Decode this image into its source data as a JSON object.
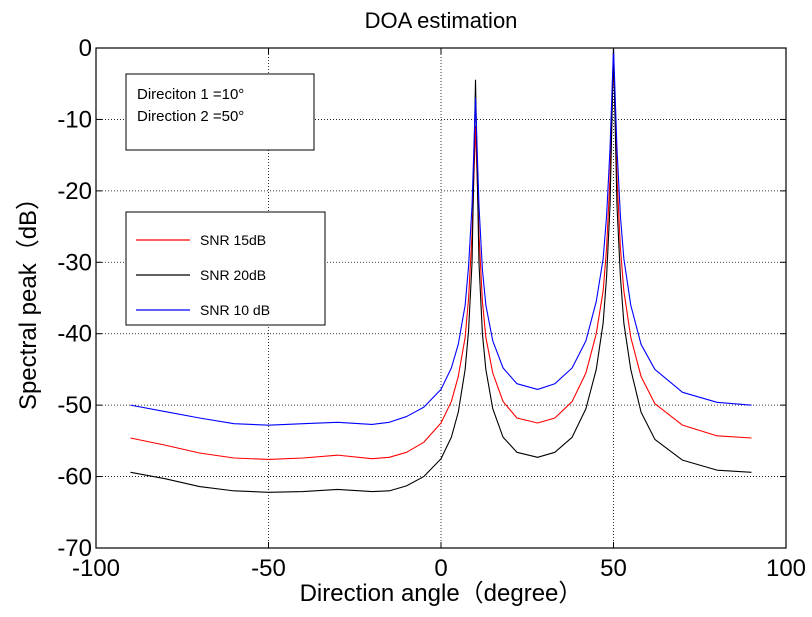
{
  "chart_data": {
    "type": "line",
    "title": "DOA estimation",
    "xlabel": "Direction angle（degree）",
    "ylabel": "Spectral peak（dB）",
    "xlim": [
      -100,
      100
    ],
    "ylim": [
      -70,
      0
    ],
    "xticks": [
      -100,
      -50,
      0,
      50,
      100
    ],
    "yticks": [
      0,
      -10,
      -20,
      -30,
      -40,
      -50,
      -60,
      -70
    ],
    "xtick_labels": [
      "-100",
      "-50",
      "0",
      "50",
      "100"
    ],
    "ytick_labels": [
      "0",
      "-10",
      "-20",
      "-30",
      "-40",
      "-50",
      "-60",
      "-70"
    ],
    "grid": true,
    "grid_style": "dotted",
    "annotations": [
      "Direciton 1 =10°",
      "Direction 2 =50°"
    ],
    "legend_position": "middle-left",
    "series": [
      {
        "name": "SNR 15dB",
        "color": "#ff0000",
        "x": [
          -90,
          -80,
          -70,
          -60,
          -50,
          -40,
          -30,
          -20,
          -15,
          -10,
          -5,
          0,
          3,
          5,
          7,
          8,
          9,
          10,
          11,
          12,
          13,
          15,
          18,
          22,
          28,
          33,
          38,
          42,
          45,
          47,
          48,
          49,
          50,
          51,
          52,
          53,
          55,
          58,
          62,
          70,
          80,
          90
        ],
        "y": [
          -54.6,
          -55.6,
          -56.7,
          -57.4,
          -57.6,
          -57.4,
          -57.0,
          -57.5,
          -57.3,
          -56.6,
          -55.2,
          -52.5,
          -49.5,
          -46.0,
          -40.5,
          -35.0,
          -26.0,
          -11.0,
          -26.0,
          -35.5,
          -40.5,
          -45.5,
          -49.5,
          -51.8,
          -52.5,
          -51.8,
          -49.5,
          -45.5,
          -40.0,
          -34.0,
          -28.0,
          -18.0,
          -1.0,
          -18.0,
          -28.0,
          -34.0,
          -40.5,
          -46.0,
          -49.8,
          -52.8,
          -54.3,
          -54.6
        ]
      },
      {
        "name": "SNR 20dB",
        "color": "#000000",
        "x": [
          -90,
          -80,
          -70,
          -60,
          -50,
          -40,
          -30,
          -20,
          -15,
          -10,
          -5,
          0,
          3,
          5,
          7,
          8,
          9,
          10,
          11,
          12,
          13,
          15,
          18,
          22,
          28,
          33,
          38,
          42,
          45,
          47,
          48,
          49,
          50,
          51,
          52,
          53,
          55,
          58,
          62,
          70,
          80,
          90
        ],
        "y": [
          -59.4,
          -60.3,
          -61.4,
          -62.0,
          -62.2,
          -62.1,
          -61.8,
          -62.1,
          -62.0,
          -61.3,
          -60.0,
          -57.5,
          -54.5,
          -51.0,
          -45.0,
          -39.5,
          -30.0,
          -4.5,
          -30.0,
          -40.0,
          -45.0,
          -50.5,
          -54.5,
          -56.6,
          -57.3,
          -56.6,
          -54.5,
          -50.5,
          -45.0,
          -38.5,
          -32.0,
          -22.0,
          -0.2,
          -22.0,
          -32.0,
          -38.5,
          -45.0,
          -51.0,
          -54.8,
          -57.7,
          -59.1,
          -59.4
        ]
      },
      {
        "name": "SNR 10 dB",
        "color": "#0000ff",
        "x": [
          -90,
          -80,
          -70,
          -60,
          -50,
          -40,
          -30,
          -20,
          -15,
          -10,
          -5,
          0,
          3,
          5,
          7,
          8,
          9,
          10,
          11,
          12,
          13,
          15,
          18,
          22,
          28,
          33,
          38,
          42,
          45,
          47,
          48,
          49,
          50,
          51,
          52,
          53,
          55,
          58,
          62,
          70,
          80,
          90
        ],
        "y": [
          -50.0,
          -50.9,
          -51.8,
          -52.6,
          -52.8,
          -52.6,
          -52.4,
          -52.7,
          -52.4,
          -51.6,
          -50.3,
          -47.8,
          -44.8,
          -41.5,
          -36.0,
          -30.5,
          -22.0,
          -7.0,
          -22.0,
          -31.0,
          -36.0,
          -41.0,
          -44.8,
          -47.0,
          -47.8,
          -47.0,
          -44.8,
          -41.0,
          -35.5,
          -29.5,
          -23.5,
          -14.0,
          0.0,
          -14.0,
          -23.5,
          -29.5,
          -36.0,
          -41.5,
          -45.0,
          -48.2,
          -49.6,
          -50.0
        ]
      }
    ]
  }
}
